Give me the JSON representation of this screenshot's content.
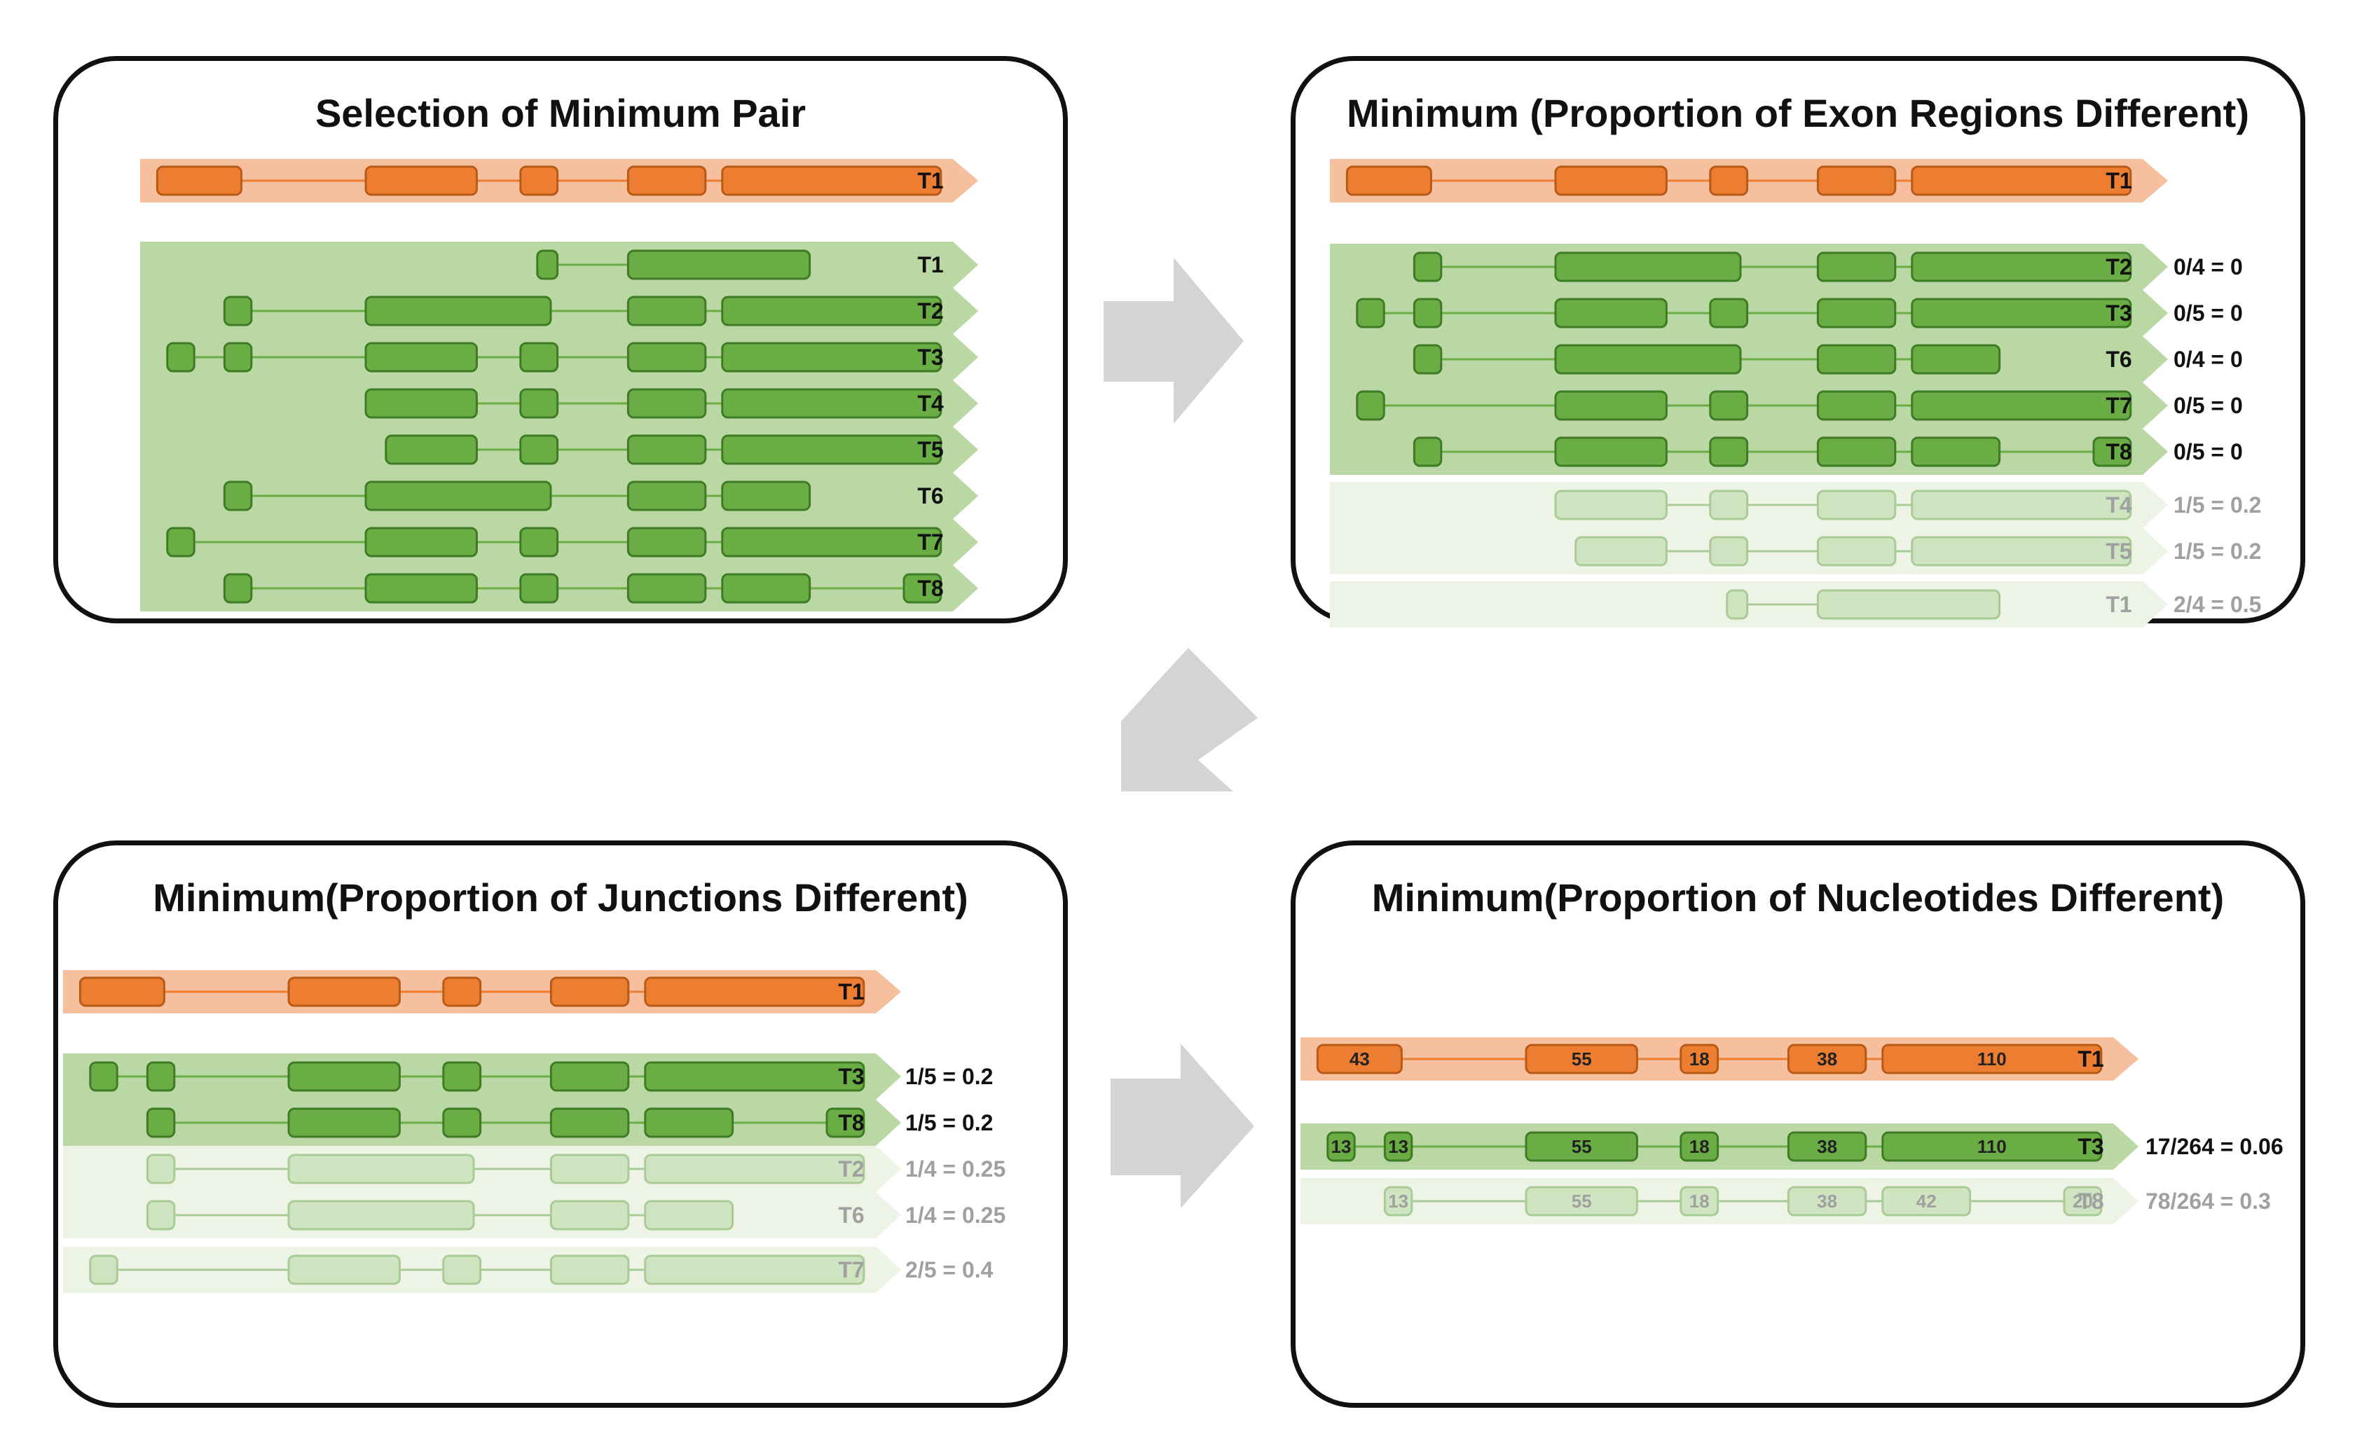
{
  "colors": {
    "orange_band": "#f6c09e",
    "orange_exon": "#ed7d31",
    "orange_exon_stroke": "#b85a17",
    "green_band": "#b9d8a3",
    "green_exon": "#6aad45",
    "green_exon_stroke": "#3f7a24",
    "faded_band": "#edf4e6",
    "faded_exon": "#cfe4c1",
    "faded_exon_stroke": "#a9cb95",
    "arrow": "#d4d4d4",
    "label_dark": "#111111",
    "label_faded": "#a0a0a0"
  },
  "panels": [
    {
      "id": "p1",
      "title": "Selection of Minimum Pair",
      "reference": {
        "label": "T1",
        "exons": [
          [
            0.06,
            0.56
          ],
          [
            1.3,
            1.96
          ],
          [
            2.22,
            2.44
          ],
          [
            2.86,
            3.32
          ],
          [
            3.42,
            4.72
          ]
        ]
      },
      "groups": [
        {
          "style": "green",
          "rows": [
            {
              "label": "T1",
              "exons": [
                [
                  2.32,
                  2.44
                ],
                [
                  2.86,
                  3.94
                ]
              ]
            },
            {
              "label": "T2",
              "exons": [
                [
                  0.46,
                  0.62
                ],
                [
                  1.3,
                  2.4
                ],
                [
                  2.86,
                  3.32
                ],
                [
                  3.42,
                  4.72
                ]
              ]
            },
            {
              "label": "T3",
              "exons": [
                [
                  0.12,
                  0.28
                ],
                [
                  0.46,
                  0.62
                ],
                [
                  1.3,
                  1.96
                ],
                [
                  2.22,
                  2.44
                ],
                [
                  2.86,
                  3.32
                ],
                [
                  3.42,
                  4.72
                ]
              ]
            },
            {
              "label": "T4",
              "exons": [
                [
                  1.3,
                  1.96
                ],
                [
                  2.22,
                  2.44
                ],
                [
                  2.86,
                  3.32
                ],
                [
                  3.42,
                  4.72
                ]
              ]
            },
            {
              "label": "T5",
              "exons": [
                [
                  1.42,
                  1.96
                ],
                [
                  2.22,
                  2.44
                ],
                [
                  2.86,
                  3.32
                ],
                [
                  3.42,
                  4.72
                ]
              ]
            },
            {
              "label": "T6",
              "exons": [
                [
                  0.46,
                  0.62
                ],
                [
                  1.3,
                  2.4
                ],
                [
                  2.86,
                  3.32
                ],
                [
                  3.42,
                  3.94
                ]
              ]
            },
            {
              "label": "T7",
              "exons": [
                [
                  0.12,
                  0.28
                ],
                [
                  1.3,
                  1.96
                ],
                [
                  2.22,
                  2.44
                ],
                [
                  2.86,
                  3.32
                ],
                [
                  3.42,
                  4.72
                ]
              ]
            },
            {
              "label": "T8",
              "exons": [
                [
                  0.46,
                  0.62
                ],
                [
                  1.3,
                  1.96
                ],
                [
                  2.22,
                  2.44
                ],
                [
                  2.86,
                  3.32
                ],
                [
                  3.42,
                  3.94
                ],
                [
                  4.5,
                  4.72
                ]
              ]
            }
          ]
        }
      ]
    },
    {
      "id": "p2",
      "title": "Minimum (Proportion of Exon Regions Different)",
      "reference": {
        "label": "T1",
        "exons": [
          [
            0.06,
            0.56
          ],
          [
            1.3,
            1.96
          ],
          [
            2.22,
            2.44
          ],
          [
            2.86,
            3.32
          ],
          [
            3.42,
            4.72
          ]
        ]
      },
      "groups": [
        {
          "style": "green",
          "rows": [
            {
              "label": "T2",
              "score": "0/4 = 0",
              "exons": [
                [
                  0.46,
                  0.62
                ],
                [
                  1.3,
                  2.4
                ],
                [
                  2.86,
                  3.32
                ],
                [
                  3.42,
                  4.72
                ]
              ]
            },
            {
              "label": "T3",
              "score": "0/5 = 0",
              "exons": [
                [
                  0.12,
                  0.28
                ],
                [
                  0.46,
                  0.62
                ],
                [
                  1.3,
                  1.96
                ],
                [
                  2.22,
                  2.44
                ],
                [
                  2.86,
                  3.32
                ],
                [
                  3.42,
                  4.72
                ]
              ]
            },
            {
              "label": "T6",
              "score": "0/4 = 0",
              "exons": [
                [
                  0.46,
                  0.62
                ],
                [
                  1.3,
                  2.4
                ],
                [
                  2.86,
                  3.32
                ],
                [
                  3.42,
                  3.94
                ]
              ]
            },
            {
              "label": "T7",
              "score": "0/5 = 0",
              "exons": [
                [
                  0.12,
                  0.28
                ],
                [
                  1.3,
                  1.96
                ],
                [
                  2.22,
                  2.44
                ],
                [
                  2.86,
                  3.32
                ],
                [
                  3.42,
                  4.72
                ]
              ]
            },
            {
              "label": "T8",
              "score": "0/5 = 0",
              "exons": [
                [
                  0.46,
                  0.62
                ],
                [
                  1.3,
                  1.96
                ],
                [
                  2.22,
                  2.44
                ],
                [
                  2.86,
                  3.32
                ],
                [
                  3.42,
                  3.94
                ],
                [
                  4.5,
                  4.72
                ]
              ]
            }
          ]
        },
        {
          "style": "faded",
          "rows": [
            {
              "label": "T4",
              "score": "1/5 = 0.2",
              "exons": [
                [
                  1.3,
                  1.96
                ],
                [
                  2.22,
                  2.44
                ],
                [
                  2.86,
                  3.32
                ],
                [
                  3.42,
                  4.72
                ]
              ]
            },
            {
              "label": "T5",
              "score": "1/5 = 0.2",
              "exons": [
                [
                  1.42,
                  1.96
                ],
                [
                  2.22,
                  2.44
                ],
                [
                  2.86,
                  3.32
                ],
                [
                  3.42,
                  4.72
                ]
              ]
            }
          ]
        },
        {
          "style": "faded",
          "rows": [
            {
              "label": "T1",
              "score": "2/4 = 0.5",
              "exons": [
                [
                  2.32,
                  2.44
                ],
                [
                  2.86,
                  3.94
                ]
              ]
            }
          ]
        }
      ]
    },
    {
      "id": "p3",
      "title": "Minimum(Proportion of Junctions Different)",
      "reference": {
        "label": "T1",
        "exons": [
          [
            0.06,
            0.56
          ],
          [
            1.3,
            1.96
          ],
          [
            2.22,
            2.44
          ],
          [
            2.86,
            3.32
          ],
          [
            3.42,
            4.72
          ]
        ]
      },
      "groups": [
        {
          "style": "green",
          "rows": [
            {
              "label": "T3",
              "score": "1/5 = 0.2",
              "exons": [
                [
                  0.12,
                  0.28
                ],
                [
                  0.46,
                  0.62
                ],
                [
                  1.3,
                  1.96
                ],
                [
                  2.22,
                  2.44
                ],
                [
                  2.86,
                  3.32
                ],
                [
                  3.42,
                  4.72
                ]
              ]
            },
            {
              "label": "T8",
              "score": "1/5 = 0.2",
              "exons": [
                [
                  0.46,
                  0.62
                ],
                [
                  1.3,
                  1.96
                ],
                [
                  2.22,
                  2.44
                ],
                [
                  2.86,
                  3.32
                ],
                [
                  3.42,
                  3.94
                ],
                [
                  4.5,
                  4.72
                ]
              ]
            }
          ]
        },
        {
          "style": "faded",
          "rows": [
            {
              "label": "T2",
              "score": "1/4 = 0.25",
              "exons": [
                [
                  0.46,
                  0.62
                ],
                [
                  1.3,
                  2.4
                ],
                [
                  2.86,
                  3.32
                ],
                [
                  3.42,
                  4.72
                ]
              ]
            },
            {
              "label": "T6",
              "score": "1/4 = 0.25",
              "exons": [
                [
                  0.46,
                  0.62
                ],
                [
                  1.3,
                  2.4
                ],
                [
                  2.86,
                  3.32
                ],
                [
                  3.42,
                  3.94
                ]
              ]
            }
          ]
        },
        {
          "style": "faded",
          "rows": [
            {
              "label": "T7",
              "score": "2/5 = 0.4",
              "exons": [
                [
                  0.12,
                  0.28
                ],
                [
                  1.3,
                  1.96
                ],
                [
                  2.22,
                  2.44
                ],
                [
                  2.86,
                  3.32
                ],
                [
                  3.42,
                  4.72
                ]
              ]
            }
          ]
        }
      ]
    },
    {
      "id": "p4",
      "title": "Minimum(Proportion of Nucleotides Different)",
      "reference": {
        "label": "T1",
        "exons": [
          [
            0.06,
            0.56,
            "43"
          ],
          [
            1.3,
            1.96,
            "55"
          ],
          [
            2.22,
            2.44,
            "18"
          ],
          [
            2.86,
            3.32,
            "38"
          ],
          [
            3.42,
            4.72,
            "110"
          ]
        ]
      },
      "groups": [
        {
          "style": "green",
          "rows": [
            {
              "label": "T3",
              "score": "17/264 = 0.06",
              "exons": [
                [
                  0.12,
                  0.28,
                  "13"
                ],
                [
                  0.46,
                  0.62,
                  "13"
                ],
                [
                  1.3,
                  1.96,
                  "55"
                ],
                [
                  2.22,
                  2.44,
                  "18"
                ],
                [
                  2.86,
                  3.32,
                  "38"
                ],
                [
                  3.42,
                  4.72,
                  "110"
                ]
              ]
            }
          ]
        },
        {
          "style": "faded",
          "rows": [
            {
              "label": "T8",
              "score": "78/264 = 0.3",
              "exons": [
                [
                  0.46,
                  0.62,
                  "13"
                ],
                [
                  1.3,
                  1.96,
                  "55"
                ],
                [
                  2.22,
                  2.44,
                  "18"
                ],
                [
                  2.86,
                  3.32,
                  "38"
                ],
                [
                  3.42,
                  3.94,
                  "42"
                ],
                [
                  4.5,
                  4.72,
                  "20"
                ]
              ]
            }
          ]
        }
      ]
    }
  ]
}
